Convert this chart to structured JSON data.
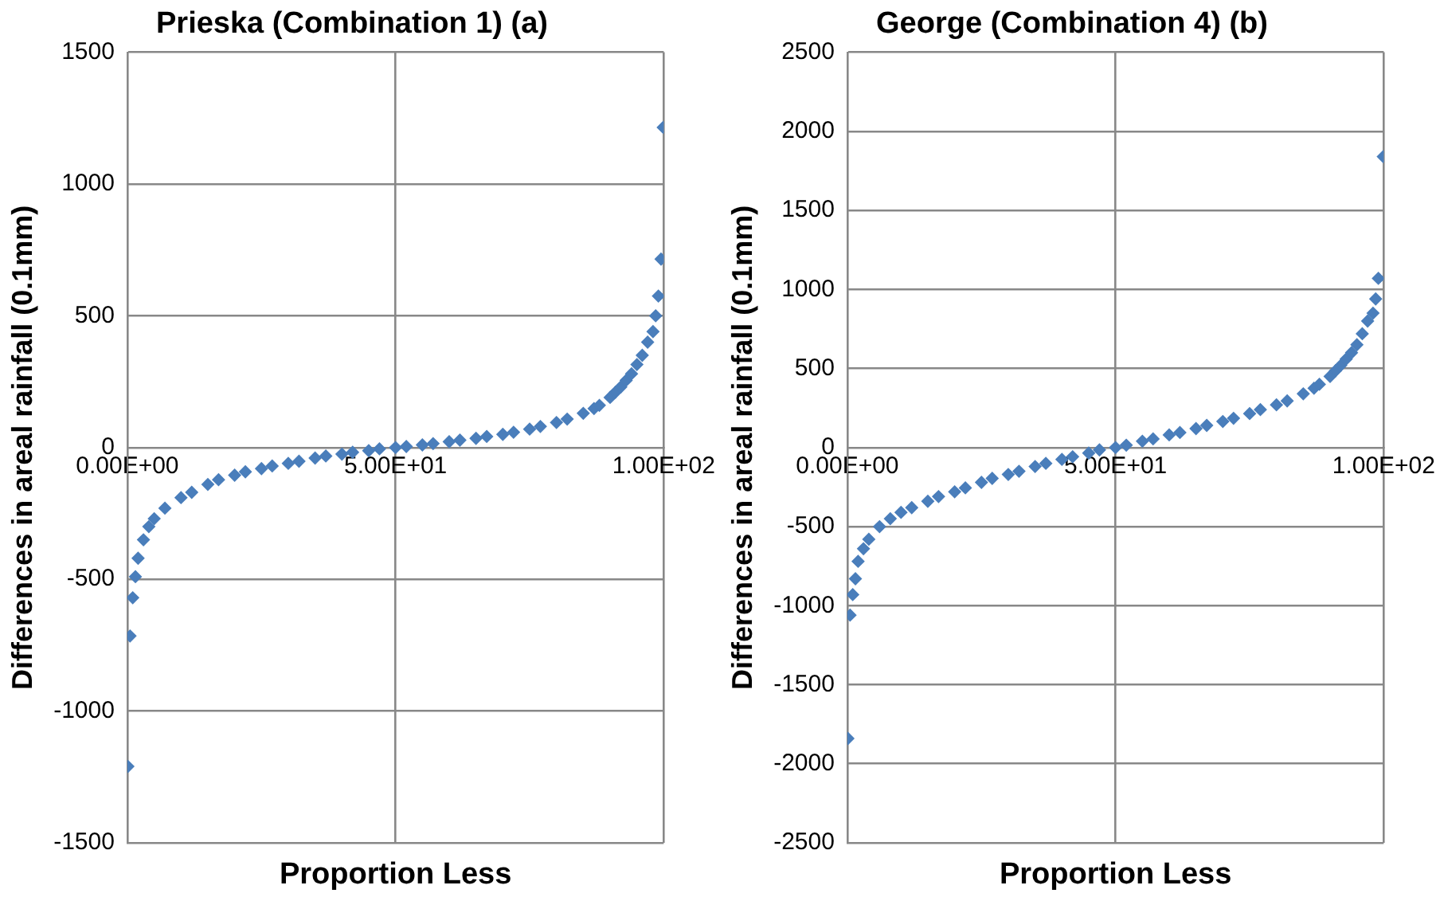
{
  "chart_data": [
    {
      "type": "scatter",
      "title": "Prieska (Combination 1) (a)",
      "xlabel": "Proportion Less",
      "ylabel": "Differences in areal rainfall (0.1mm)",
      "marker": "diamond",
      "grid": true,
      "xlim": [
        0,
        100
      ],
      "xticks": [
        {
          "value": 0,
          "label": "0.00E+00"
        },
        {
          "value": 50,
          "label": "5.00E+01"
        },
        {
          "value": 100,
          "label": "1.00E+02"
        }
      ],
      "ylim": [
        -1500,
        1500
      ],
      "yticks": [
        -1500,
        -1000,
        -500,
        0,
        500,
        1000,
        1500
      ],
      "series": [
        {
          "color": "#4a7ebb",
          "x": [
            0.1,
            0.5,
            1,
            1.5,
            2,
            3,
            4,
            5,
            7,
            10,
            12,
            15,
            17,
            20,
            22,
            25,
            27,
            30,
            32,
            35,
            37,
            40,
            42,
            45,
            47,
            50,
            52,
            55,
            57,
            60,
            62,
            65,
            67,
            70,
            72,
            75,
            77,
            80,
            82,
            85,
            87,
            88,
            90,
            91,
            92,
            93,
            94,
            95,
            96,
            97,
            98,
            98.5,
            99,
            99.5,
            99.9
          ],
          "values": [
            -1210,
            -715,
            -570,
            -490,
            -420,
            -350,
            -300,
            -270,
            -230,
            -190,
            -170,
            -140,
            -122,
            -105,
            -92,
            -80,
            -70,
            -60,
            -52,
            -40,
            -32,
            -25,
            -18,
            -12,
            -5,
            0,
            4,
            10,
            15,
            22,
            28,
            35,
            42,
            50,
            58,
            70,
            80,
            95,
            108,
            130,
            148,
            160,
            190,
            210,
            230,
            255,
            280,
            315,
            350,
            400,
            440,
            500,
            575,
            715,
            1215
          ]
        }
      ]
    },
    {
      "type": "scatter",
      "title": "George (Combination 4) (b)",
      "xlabel": "Proportion Less",
      "ylabel": "Differences in areal rainfall (0.1mm)",
      "marker": "diamond",
      "grid": true,
      "xlim": [
        0,
        100
      ],
      "xticks": [
        {
          "value": 0,
          "label": "0.00E+00"
        },
        {
          "value": 50,
          "label": "5.00E+01"
        },
        {
          "value": 100,
          "label": "1.00E+02"
        }
      ],
      "ylim": [
        -2500,
        2500
      ],
      "yticks": [
        -2500,
        -2000,
        -1500,
        -1000,
        -500,
        0,
        500,
        1000,
        1500,
        2000,
        2500
      ],
      "series": [
        {
          "color": "#4a7ebb",
          "x": [
            0.1,
            0.5,
            1,
            1.5,
            2,
            3,
            4,
            6,
            8,
            10,
            12,
            15,
            17,
            20,
            22,
            25,
            27,
            30,
            32,
            35,
            37,
            40,
            42,
            45,
            47,
            50,
            52,
            55,
            57,
            60,
            62,
            65,
            67,
            70,
            72,
            75,
            77,
            80,
            82,
            85,
            87,
            88,
            90,
            91,
            92,
            93,
            94,
            95,
            96,
            97,
            98,
            98.5,
            99,
            99.9
          ],
          "values": [
            -1840,
            -1060,
            -930,
            -830,
            -720,
            -640,
            -580,
            -500,
            -450,
            -410,
            -380,
            -340,
            -310,
            -280,
            -255,
            -220,
            -195,
            -170,
            -150,
            -120,
            -100,
            -75,
            -58,
            -35,
            -15,
            0,
            15,
            40,
            55,
            80,
            95,
            120,
            140,
            165,
            185,
            215,
            240,
            270,
            295,
            340,
            375,
            400,
            450,
            485,
            520,
            560,
            600,
            650,
            720,
            800,
            850,
            940,
            1070,
            1840
          ]
        }
      ]
    }
  ]
}
